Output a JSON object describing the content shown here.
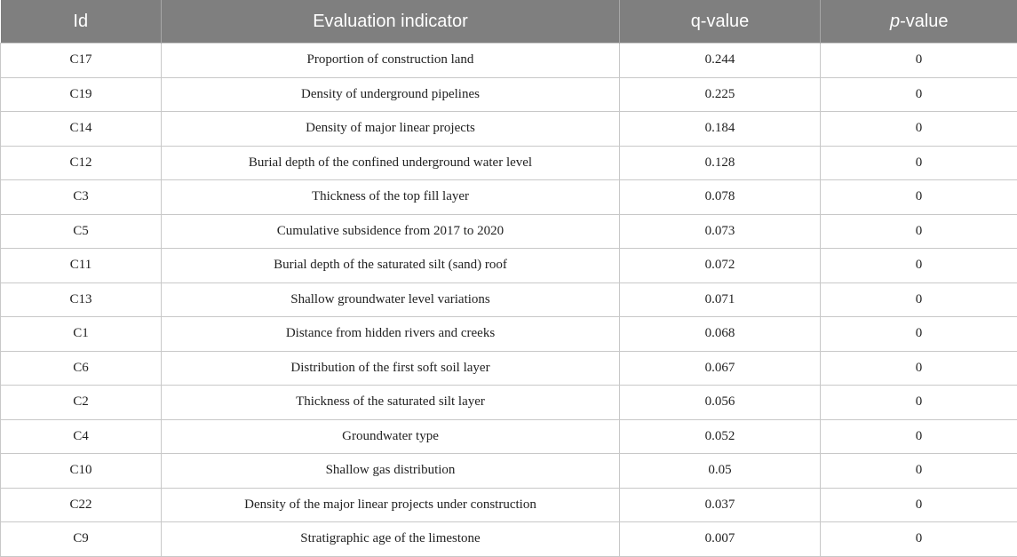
{
  "table": {
    "headers": {
      "id": "Id",
      "indicator": "Evaluation indicator",
      "q_value": "q-value",
      "p_italic": "p",
      "p_rest": "-value"
    },
    "rows": [
      {
        "id": "C17",
        "indicator": "Proportion of construction land",
        "q": "0.244",
        "p": "0"
      },
      {
        "id": "C19",
        "indicator": "Density of underground pipelines",
        "q": "0.225",
        "p": "0"
      },
      {
        "id": "C14",
        "indicator": "Density of major linear projects",
        "q": "0.184",
        "p": "0"
      },
      {
        "id": "C12",
        "indicator": "Burial depth of the confined underground water level",
        "q": "0.128",
        "p": "0"
      },
      {
        "id": "C3",
        "indicator": "Thickness of the top fill layer",
        "q": "0.078",
        "p": "0"
      },
      {
        "id": "C5",
        "indicator": "Cumulative subsidence from 2017 to 2020",
        "q": "0.073",
        "p": "0"
      },
      {
        "id": "C11",
        "indicator": "Burial depth of the saturated silt (sand) roof",
        "q": "0.072",
        "p": "0"
      },
      {
        "id": "C13",
        "indicator": "Shallow groundwater level variations",
        "q": "0.071",
        "p": "0"
      },
      {
        "id": "C1",
        "indicator": "Distance from hidden rivers and creeks",
        "q": "0.068",
        "p": "0"
      },
      {
        "id": "C6",
        "indicator": "Distribution of the first soft soil layer",
        "q": "0.067",
        "p": "0"
      },
      {
        "id": "C2",
        "indicator": "Thickness of the saturated silt layer",
        "q": "0.056",
        "p": "0"
      },
      {
        "id": "C4",
        "indicator": "Groundwater type",
        "q": "0.052",
        "p": "0"
      },
      {
        "id": "C10",
        "indicator": "Shallow gas distribution",
        "q": "0.05",
        "p": "0"
      },
      {
        "id": "C22",
        "indicator": "Density of the major linear projects under construction",
        "q": "0.037",
        "p": "0"
      },
      {
        "id": "C9",
        "indicator": "Stratigraphic age of the limestone",
        "q": "0.007",
        "p": "0"
      }
    ]
  }
}
